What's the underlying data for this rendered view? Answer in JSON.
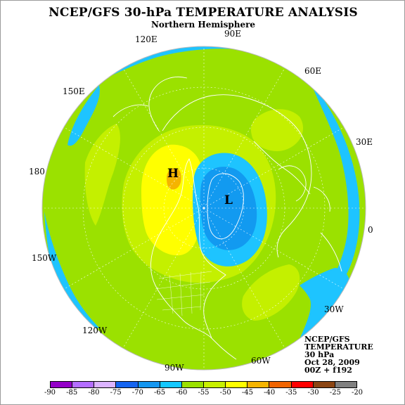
{
  "header": {
    "title": "NCEP/GFS 30-hPa TEMPERATURE ANALYSIS",
    "subtitle": "Northern Hemisphere"
  },
  "map": {
    "projection": "north-polar-stereographic",
    "longitude_labels": [
      {
        "name": "lon-label-90e",
        "text": "90E"
      },
      {
        "name": "lon-label-60e",
        "text": "60E"
      },
      {
        "name": "lon-label-30e",
        "text": "30E"
      },
      {
        "name": "lon-label-0",
        "text": "0"
      },
      {
        "name": "lon-label-30w",
        "text": "30W"
      },
      {
        "name": "lon-label-60w",
        "text": "60W"
      },
      {
        "name": "lon-label-90w",
        "text": "90W"
      },
      {
        "name": "lon-label-120w",
        "text": "120W"
      },
      {
        "name": "lon-label-150w",
        "text": "150W"
      },
      {
        "name": "lon-label-180",
        "text": "180"
      },
      {
        "name": "lon-label-150e",
        "text": "150E"
      },
      {
        "name": "lon-label-120e",
        "text": "120E"
      }
    ],
    "centers": {
      "high": "H",
      "low": "L"
    },
    "colors": {
      "ocean_base": "#9be100",
      "light_green": "#c4f000",
      "blue_light": "#1ec4ff",
      "blue_mid": "#129af0",
      "yellow": "#ffff00",
      "orange": "#f5b400",
      "coast": "#ffffff"
    }
  },
  "info": {
    "lines": [
      "NCEP/GFS",
      "TEMPERATURE",
      "30 hPa",
      "Oct 28, 2009",
      "00Z + f192"
    ]
  },
  "colorbar": {
    "labels": [
      "-90",
      "-85",
      "-80",
      "-75",
      "-70",
      "-65",
      "-60",
      "-55",
      "-50",
      "-45",
      "-40",
      "-35",
      "-30",
      "-25",
      "-20"
    ],
    "colors": [
      "#9400c8",
      "#b46eff",
      "#dcb4ff",
      "#1464f0",
      "#1496f0",
      "#14c8ff",
      "#9be100",
      "#c8f000",
      "#ffff00",
      "#f5b400",
      "#f06400",
      "#ff0000",
      "#8b4513",
      "#808080"
    ]
  }
}
